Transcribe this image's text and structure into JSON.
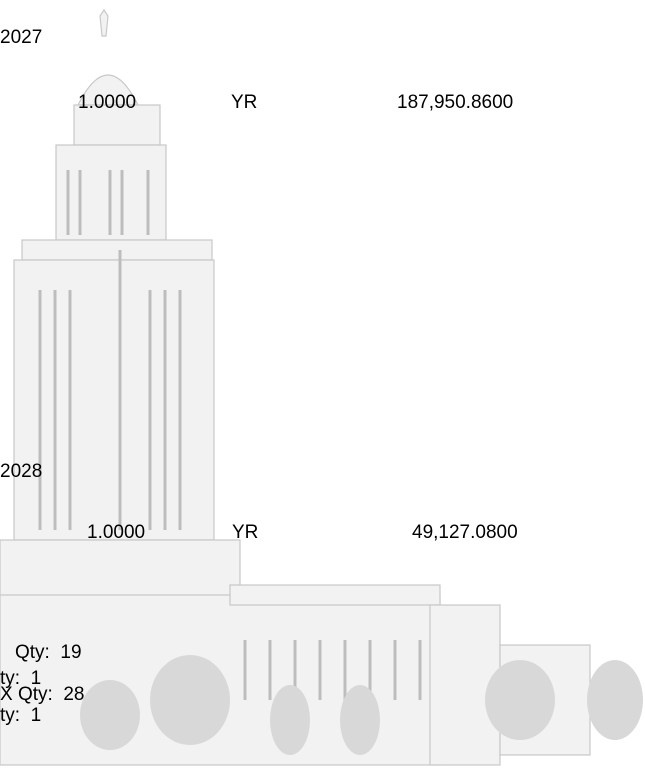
{
  "rows": [
    {
      "year": "2027",
      "quantity": "1.0000",
      "unit": "YR",
      "amount": "187,950.8600"
    },
    {
      "year": "2028",
      "quantity": "1.0000",
      "unit": "YR",
      "amount": "49,127.0800"
    }
  ],
  "lines": [
    "Qty:  19",
    "ty:  1",
    "X Qty:  28",
    "ty:  1"
  ]
}
